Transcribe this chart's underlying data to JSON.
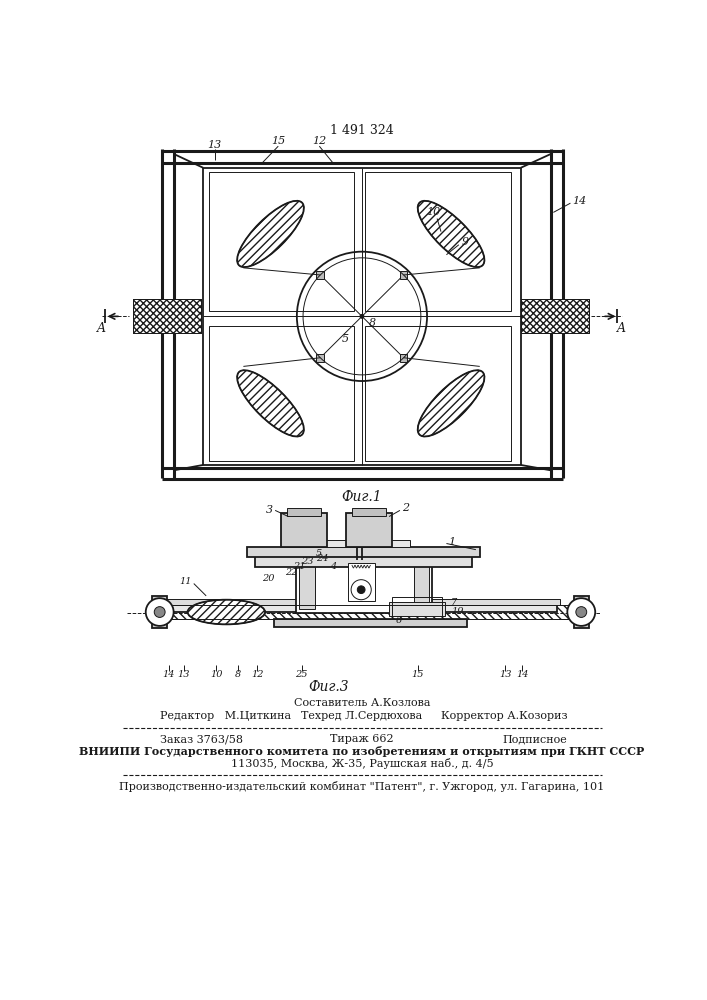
{
  "title_text": "1 491 324",
  "fig1_label": "Фиг.1",
  "fig3_label": "Фиг.3",
  "bg_color": "#ffffff",
  "line_color": "#1a1a1a",
  "footer_author": "Составитель А.Козлова",
  "footer_editor": "Редактор   М.Циткина",
  "footer_techred": "Техред Л.Сердюхова",
  "footer_corrector": "Корректор А.Козориз",
  "footer_order": "Заказ 3763/58",
  "footer_tirazh": "Тираж 662",
  "footer_podpisnoe": "Подписное",
  "footer_vniiipi1": "ВНИИПИ Государственного комитета по изобретениям и открытиям при ГКНТ СССР",
  "footer_vniiipi2": "113035, Москва, Ж-35, Раушская наб., д. 4/5",
  "footer_factory": "Производственно-издательский комбинат \"Патент\", г. Ужгород, ул. Гагарина, 101"
}
